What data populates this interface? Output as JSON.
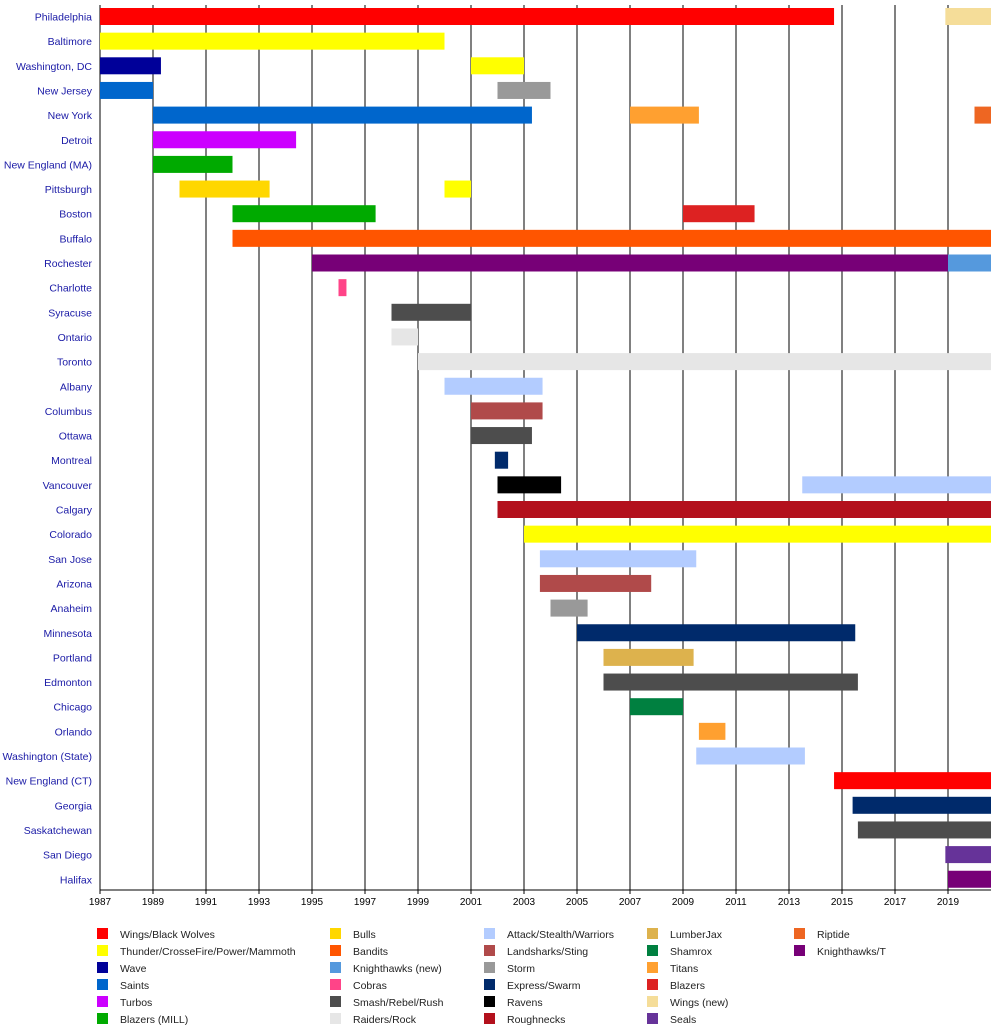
{
  "chart_data": {
    "type": "bar",
    "subtype": "timeline",
    "title": "",
    "xlabel": "",
    "ylabel": "",
    "xlim": [
      1987,
      2020.7
    ],
    "x_ticks": [
      1987,
      1989,
      1991,
      1993,
      1995,
      1997,
      1999,
      2001,
      2003,
      2005,
      2007,
      2009,
      2011,
      2013,
      2015,
      2017,
      2019
    ],
    "grid": "vertical at odd years",
    "legend_placement": "bottom",
    "categories": [
      "Philadelphia",
      "Baltimore",
      "Washington, DC",
      "New Jersey",
      "New York",
      "Detroit",
      "New England (MA)",
      "Pittsburgh",
      "Boston",
      "Buffalo",
      "Rochester",
      "Charlotte",
      "Syracuse",
      "Ontario",
      "Toronto",
      "Albany",
      "Columbus",
      "Ottawa",
      "Montreal",
      "Vancouver",
      "Calgary",
      "Colorado",
      "San Jose",
      "Arizona",
      "Anaheim",
      "Minnesota",
      "Portland",
      "Edmonton",
      "Chicago",
      "Orlando",
      "Washington (State)",
      "New England (CT)",
      "Georgia",
      "Saskatchewan",
      "San Diego",
      "Halifax"
    ],
    "series": [
      {
        "name": "Wings/Black Wolves",
        "color": "#ff0000"
      },
      {
        "name": "Thunder/CrosseFire/Power/Mammoth",
        "color": "#ffff00"
      },
      {
        "name": "Wave",
        "color": "#000099"
      },
      {
        "name": "Saints",
        "color": "#0066cc"
      },
      {
        "name": "Turbos",
        "color": "#cc00ff"
      },
      {
        "name": "Blazers (MILL)",
        "color": "#00aa00"
      },
      {
        "name": "Bulls",
        "color": "#ffd700"
      },
      {
        "name": "Bandits",
        "color": "#ff5500"
      },
      {
        "name": "Knighthawks (new)",
        "color": "#5599dd"
      },
      {
        "name": "Cobras",
        "color": "#ff4488"
      },
      {
        "name": "Smash/Rebel/Rush",
        "color": "#4d4d4d"
      },
      {
        "name": "Raiders/Rock",
        "color": "#e6e6e6"
      },
      {
        "name": "Attack/Stealth/Warriors",
        "color": "#b3ccff"
      },
      {
        "name": "Landsharks/Sting",
        "color": "#b04a4a"
      },
      {
        "name": "Storm",
        "color": "#999999"
      },
      {
        "name": "Express/Swarm",
        "color": "#002a6b"
      },
      {
        "name": "Ravens",
        "color": "#000000"
      },
      {
        "name": "Roughnecks",
        "color": "#b3101c"
      },
      {
        "name": "LumberJax",
        "color": "#ddb24d"
      },
      {
        "name": "Shamrox",
        "color": "#008040"
      },
      {
        "name": "Titans",
        "color": "#ffa030"
      },
      {
        "name": "Blazers",
        "color": "#dd2222"
      },
      {
        "name": "Wings (new)",
        "color": "#f5dd99"
      },
      {
        "name": "Seals",
        "color": "#663399"
      },
      {
        "name": "Riptide",
        "color": "#ee6622"
      },
      {
        "name": "Knighthawks/T",
        "color": "#770077"
      }
    ],
    "bars": [
      {
        "category": "Philadelphia",
        "team": "Wings/Black Wolves",
        "start": 1987,
        "end": 2014.7
      },
      {
        "category": "Philadelphia",
        "team": "Wings (new)",
        "start": 2018.9,
        "end": 2020.7
      },
      {
        "category": "Baltimore",
        "team": "Thunder/CrosseFire/Power/Mammoth",
        "start": 1987,
        "end": 2000
      },
      {
        "category": "Washington, DC",
        "team": "Wave",
        "start": 1987,
        "end": 1989.3
      },
      {
        "category": "Washington, DC",
        "team": "Thunder/CrosseFire/Power/Mammoth",
        "start": 2001,
        "end": 2003
      },
      {
        "category": "New Jersey",
        "team": "Saints",
        "start": 1987,
        "end": 1989
      },
      {
        "category": "New Jersey",
        "team": "Storm",
        "start": 2002,
        "end": 2004
      },
      {
        "category": "New York",
        "team": "Saints",
        "start": 1989,
        "end": 2003.3
      },
      {
        "category": "New York",
        "team": "Titans",
        "start": 2007,
        "end": 2009.6
      },
      {
        "category": "New York",
        "team": "Riptide",
        "start": 2020,
        "end": 2020.7
      },
      {
        "category": "Detroit",
        "team": "Turbos",
        "start": 1989,
        "end": 1994.4
      },
      {
        "category": "New England (MA)",
        "team": "Blazers (MILL)",
        "start": 1989,
        "end": 1992
      },
      {
        "category": "Pittsburgh",
        "team": "Bulls",
        "start": 1990,
        "end": 1993.4
      },
      {
        "category": "Pittsburgh",
        "team": "Thunder/CrosseFire/Power/Mammoth",
        "start": 2000,
        "end": 2001
      },
      {
        "category": "Boston",
        "team": "Blazers (MILL)",
        "start": 1992,
        "end": 1997.4
      },
      {
        "category": "Boston",
        "team": "Blazers",
        "start": 2009,
        "end": 2011.7
      },
      {
        "category": "Buffalo",
        "team": "Bandits",
        "start": 1992,
        "end": 2020.7
      },
      {
        "category": "Rochester",
        "team": "Knighthawks/T",
        "start": 1995,
        "end": 2019
      },
      {
        "category": "Rochester",
        "team": "Knighthawks (new)",
        "start": 2019,
        "end": 2020.7
      },
      {
        "category": "Charlotte",
        "team": "Cobras",
        "start": 1996,
        "end": 1996.3
      },
      {
        "category": "Syracuse",
        "team": "Smash/Rebel/Rush",
        "start": 1998,
        "end": 2001
      },
      {
        "category": "Ontario",
        "team": "Raiders/Rock",
        "start": 1998,
        "end": 1999
      },
      {
        "category": "Toronto",
        "team": "Raiders/Rock",
        "start": 1999,
        "end": 2020.7
      },
      {
        "category": "Albany",
        "team": "Attack/Stealth/Warriors",
        "start": 2000,
        "end": 2003.7
      },
      {
        "category": "Columbus",
        "team": "Landsharks/Sting",
        "start": 2001,
        "end": 2003.7
      },
      {
        "category": "Ottawa",
        "team": "Smash/Rebel/Rush",
        "start": 2001,
        "end": 2003.3
      },
      {
        "category": "Montreal",
        "team": "Express/Swarm",
        "start": 2001.9,
        "end": 2002.4
      },
      {
        "category": "Vancouver",
        "team": "Ravens",
        "start": 2002,
        "end": 2004.4
      },
      {
        "category": "Vancouver",
        "team": "Attack/Stealth/Warriors",
        "start": 2013.5,
        "end": 2020.7
      },
      {
        "category": "Calgary",
        "team": "Roughnecks",
        "start": 2002,
        "end": 2020.7
      },
      {
        "category": "Colorado",
        "team": "Thunder/CrosseFire/Power/Mammoth",
        "start": 2003,
        "end": 2020.7
      },
      {
        "category": "San Jose",
        "team": "Attack/Stealth/Warriors",
        "start": 2003.6,
        "end": 2009.5
      },
      {
        "category": "Arizona",
        "team": "Landsharks/Sting",
        "start": 2003.6,
        "end": 2007.8
      },
      {
        "category": "Anaheim",
        "team": "Storm",
        "start": 2004,
        "end": 2005.4
      },
      {
        "category": "Minnesota",
        "team": "Express/Swarm",
        "start": 2005,
        "end": 2015.5
      },
      {
        "category": "Portland",
        "team": "LumberJax",
        "start": 2006,
        "end": 2009.4
      },
      {
        "category": "Edmonton",
        "team": "Smash/Rebel/Rush",
        "start": 2006,
        "end": 2015.6
      },
      {
        "category": "Chicago",
        "team": "Shamrox",
        "start": 2007,
        "end": 2009
      },
      {
        "category": "Orlando",
        "team": "Titans",
        "start": 2009.6,
        "end": 2010.6
      },
      {
        "category": "Washington (State)",
        "team": "Attack/Stealth/Warriors",
        "start": 2009.5,
        "end": 2013.6
      },
      {
        "category": "New England (CT)",
        "team": "Wings/Black Wolves",
        "start": 2014.7,
        "end": 2020.7
      },
      {
        "category": "Georgia",
        "team": "Express/Swarm",
        "start": 2015.4,
        "end": 2020.7
      },
      {
        "category": "Saskatchewan",
        "team": "Smash/Rebel/Rush",
        "start": 2015.6,
        "end": 2020.7
      },
      {
        "category": "San Diego",
        "team": "Seals",
        "start": 2018.9,
        "end": 2020.7
      },
      {
        "category": "Halifax",
        "team": "Knighthawks/T",
        "start": 2019,
        "end": 2020.7
      }
    ]
  }
}
